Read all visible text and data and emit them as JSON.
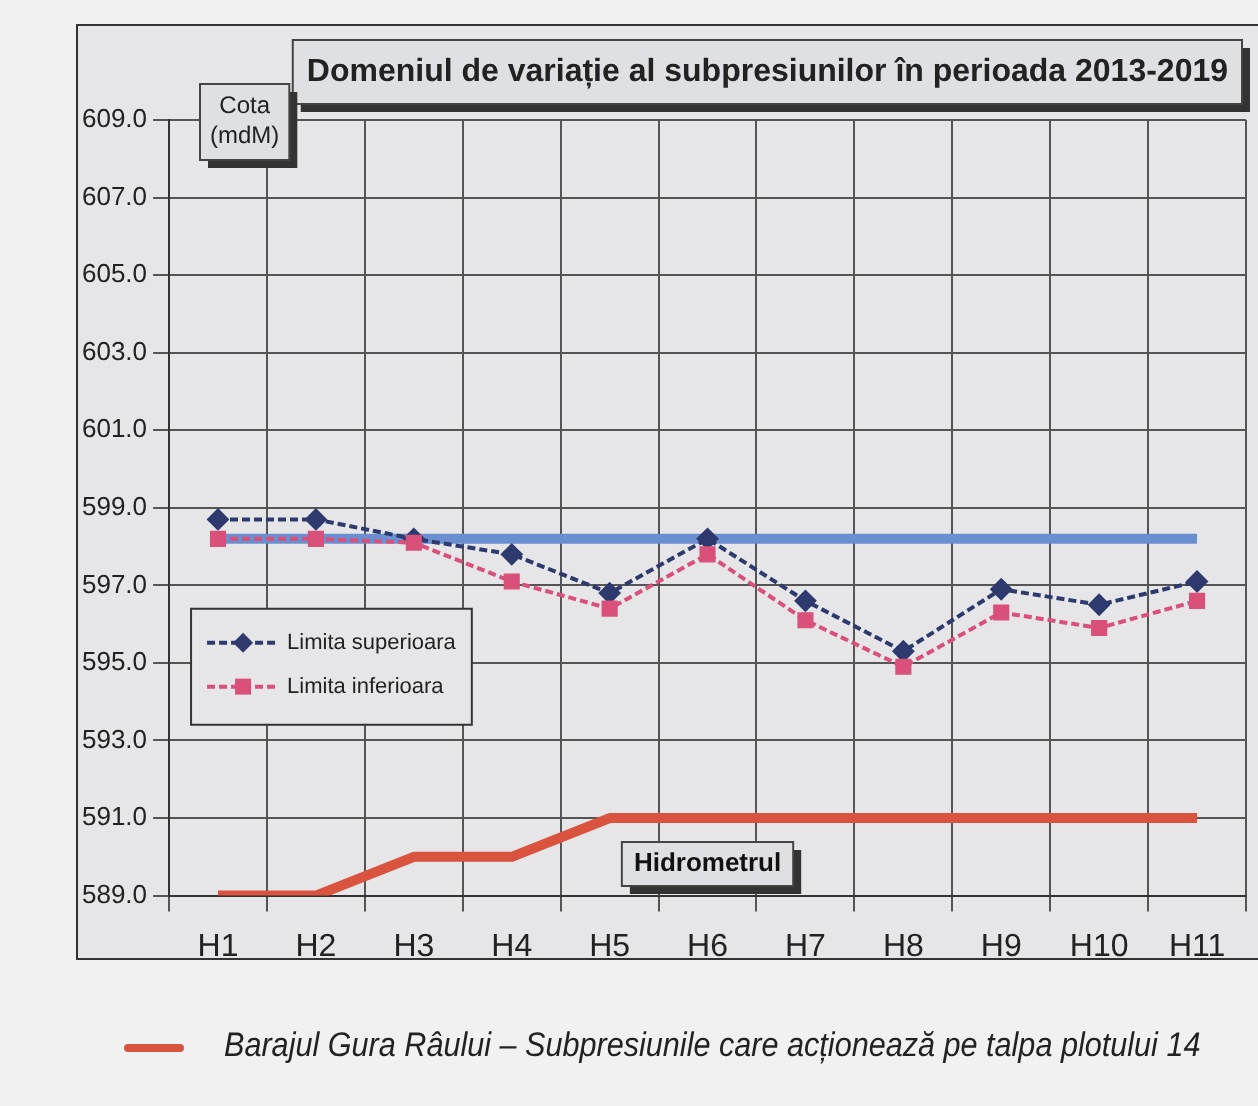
{
  "chart_data": {
    "type": "line",
    "title": "Domeniul de variație al subpresiunilor în perioada 2013-2019",
    "ylabel": "Cota\n(mdM)",
    "categories": [
      "H1",
      "H2",
      "H3",
      "H4",
      "H5",
      "H6",
      "H7",
      "H8",
      "H9",
      "H10",
      "H11"
    ],
    "series": [
      {
        "name": "Limita superioara",
        "color": "#2e3a6e",
        "marker": "diamond",
        "line_style": "dashed",
        "values": [
          598.7,
          598.7,
          598.2,
          597.8,
          596.8,
          598.2,
          596.6,
          595.3,
          596.9,
          596.5,
          597.1
        ]
      },
      {
        "name": "Limita inferioara",
        "color": "#d9507a",
        "marker": "square",
        "line_style": "dashed",
        "values": [
          598.2,
          598.2,
          598.1,
          597.1,
          596.4,
          597.8,
          596.1,
          594.9,
          596.3,
          595.9,
          596.6
        ]
      },
      {
        "color": "#6a8fd0",
        "marker": "none",
        "line_style": "solid",
        "values": [
          598.2,
          598.2,
          598.2,
          598.2,
          598.2,
          598.2,
          598.2,
          598.2,
          598.2,
          598.2,
          598.2
        ]
      },
      {
        "color": "#d9533f",
        "marker": "none",
        "line_style": "solid",
        "values": [
          589.0,
          589.0,
          590.0,
          590.0,
          591.0,
          591.0,
          591.0,
          591.0,
          591.0,
          591.0,
          591.0
        ]
      }
    ],
    "ylim": [
      589,
      609
    ],
    "yticks": [
      {
        "value": 589,
        "label": "589.0"
      },
      {
        "value": 591,
        "label": "591.0"
      },
      {
        "value": 593,
        "label": "593.0"
      },
      {
        "value": 595,
        "label": "595.0"
      },
      {
        "value": 597,
        "label": "597.0"
      },
      {
        "value": 599,
        "label": "599.0"
      },
      {
        "value": 601,
        "label": "601.0"
      },
      {
        "value": 603,
        "label": "603.0"
      },
      {
        "value": 605,
        "label": "605.0"
      },
      {
        "value": 607,
        "label": "607.0"
      },
      {
        "value": 609,
        "label": "609.0"
      }
    ],
    "grid": true,
    "legend": "left",
    "annotations": [
      {
        "text": "Hidrometrul",
        "x": "H6",
        "y": 591.0
      },
      "Barajul Gura Râului – Subpresiunile care acționează pe talpa plotului 14"
    ]
  }
}
